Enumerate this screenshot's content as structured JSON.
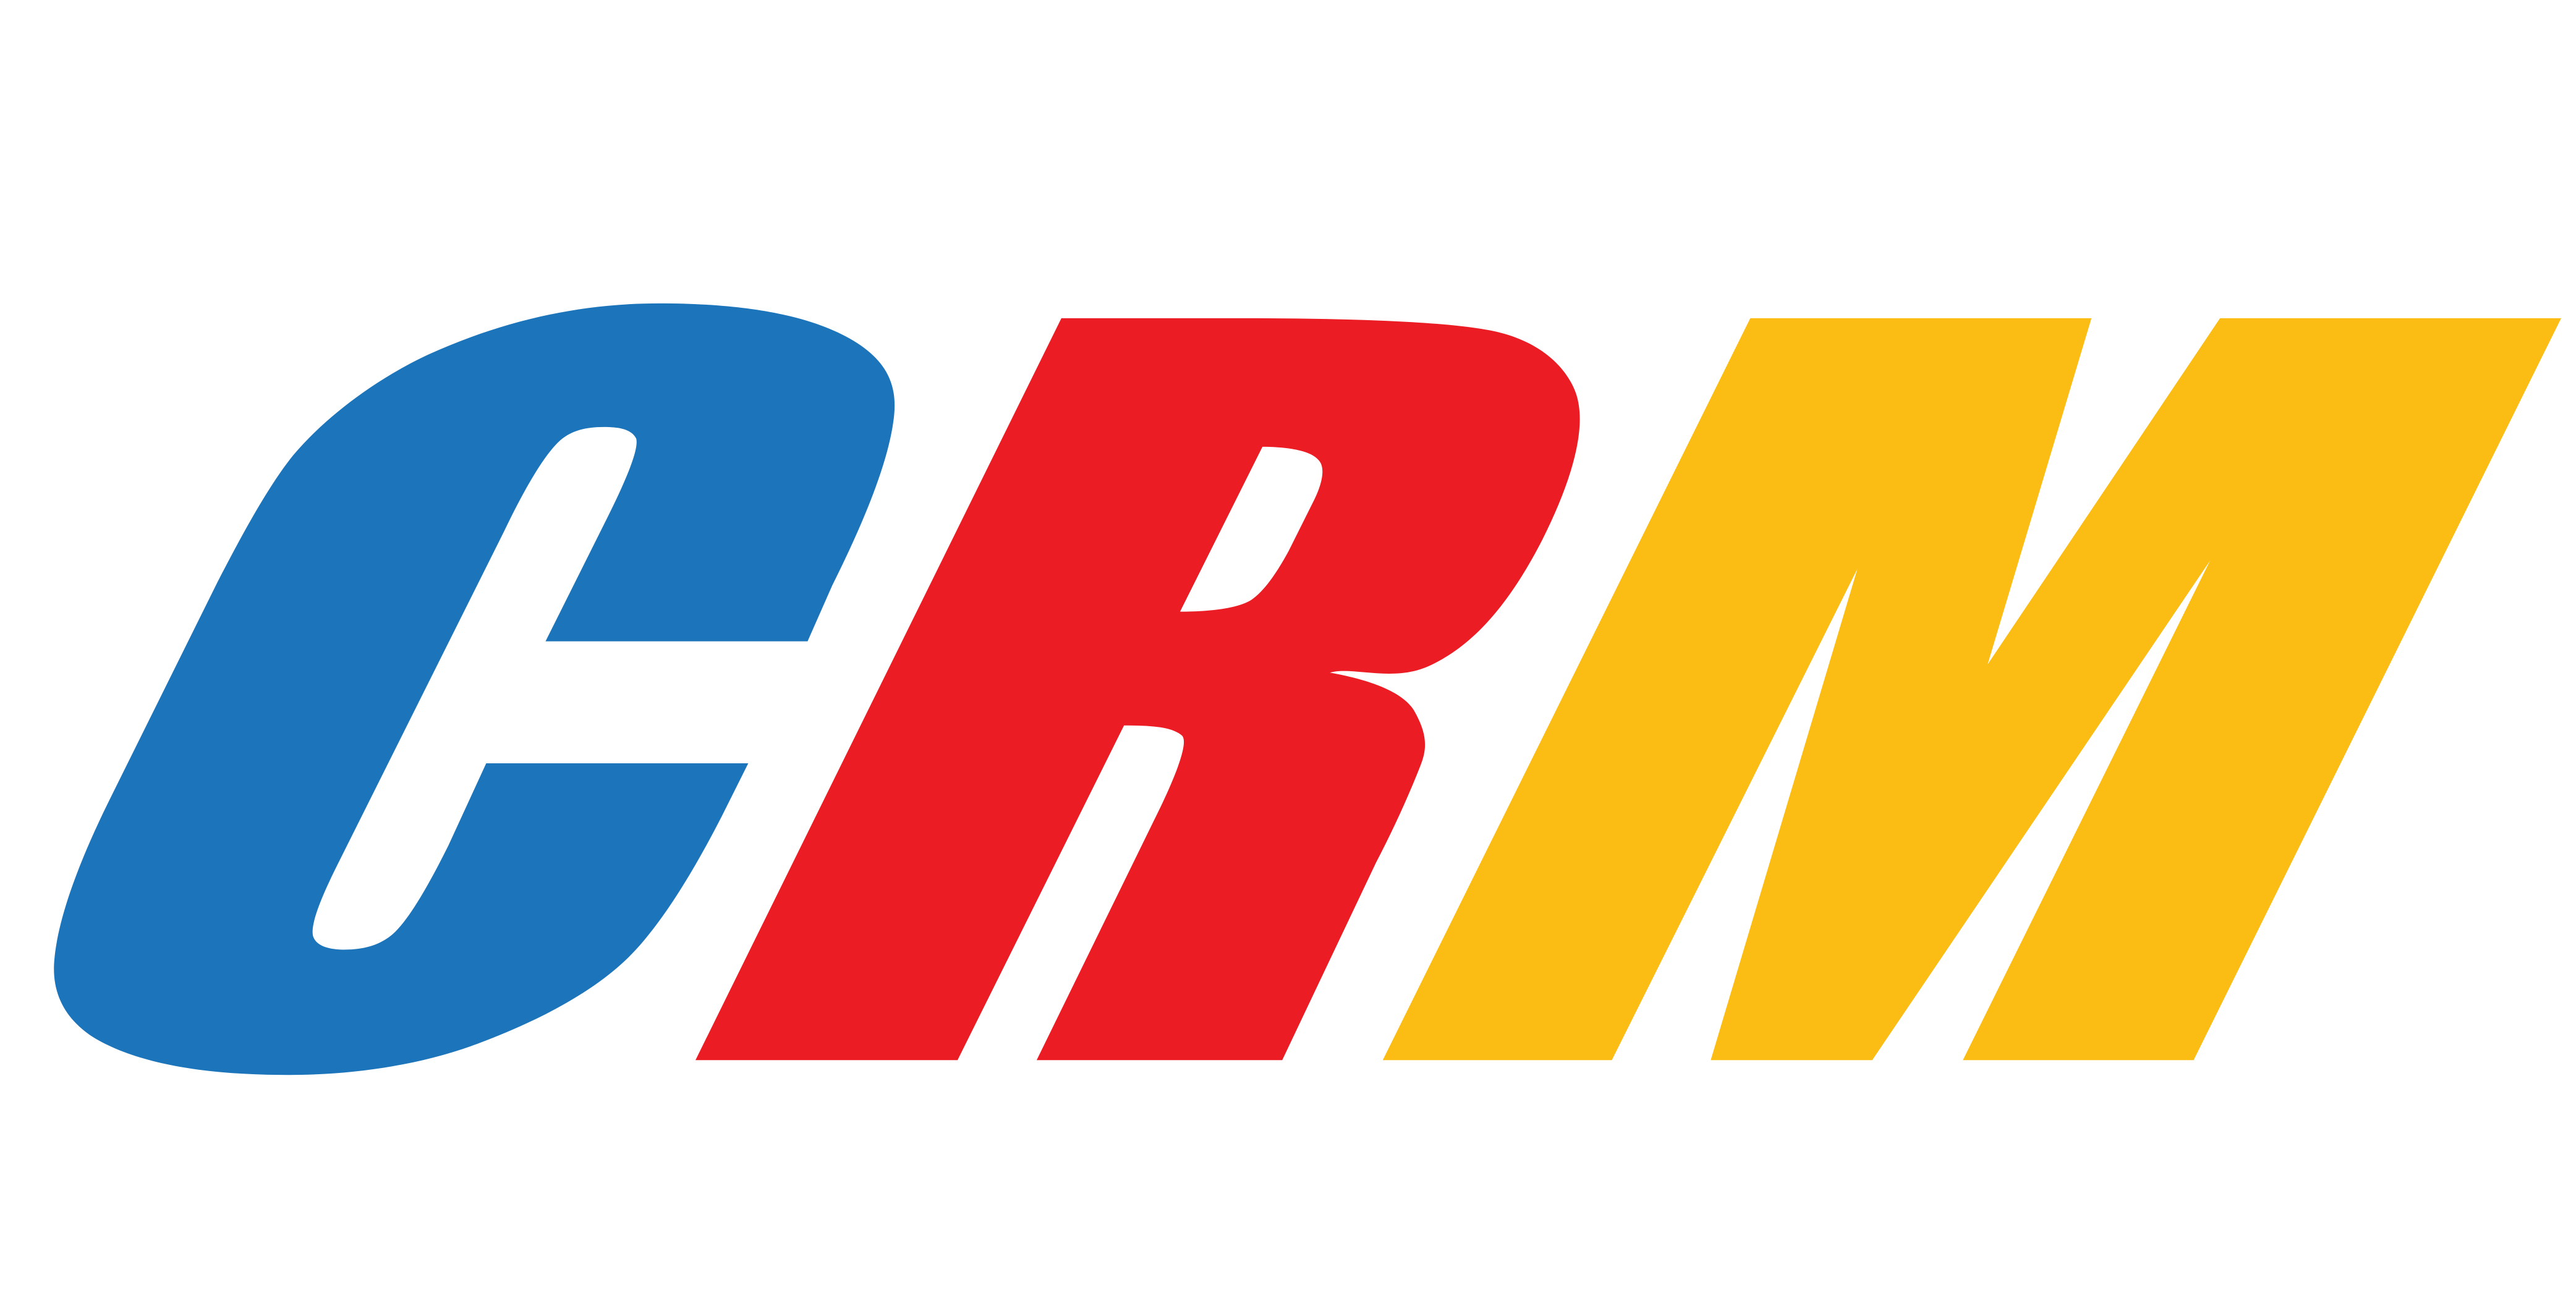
{
  "logo": {
    "text": "CRM",
    "letters": [
      {
        "char": "C",
        "color": "#1C75BA"
      },
      {
        "char": "R",
        "color": "#EC1C24"
      },
      {
        "char": "M",
        "color": "#FBBC14"
      }
    ],
    "background": "#FFFFFF"
  }
}
